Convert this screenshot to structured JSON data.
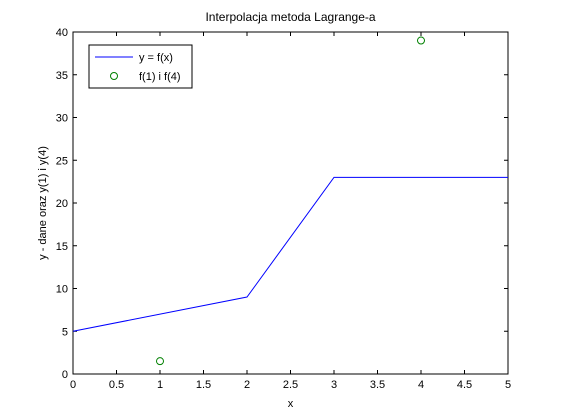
{
  "chart_data": {
    "type": "line",
    "title": "Interpolacja metoda Lagrange-a",
    "xlabel": "x",
    "ylabel": "y - dane oraz y(1) i y(4)",
    "xlim": [
      0,
      5
    ],
    "ylim": [
      0,
      40
    ],
    "xticks": [
      0,
      0.5,
      1,
      1.5,
      2,
      2.5,
      3,
      3.5,
      4,
      4.5,
      5
    ],
    "yticks": [
      0,
      5,
      10,
      15,
      20,
      25,
      30,
      35,
      40
    ],
    "grid": false,
    "legend_position": "top-left",
    "series": [
      {
        "name": "y = f(x)",
        "style": "line",
        "color": "#0000ff",
        "x": [
          0,
          2,
          3,
          5
        ],
        "y": [
          5,
          9,
          23,
          23
        ]
      },
      {
        "name": "f(1) i f(4)",
        "style": "marker-circle",
        "color": "#008000",
        "x": [
          1,
          4
        ],
        "y": [
          1.5,
          39
        ]
      }
    ]
  }
}
